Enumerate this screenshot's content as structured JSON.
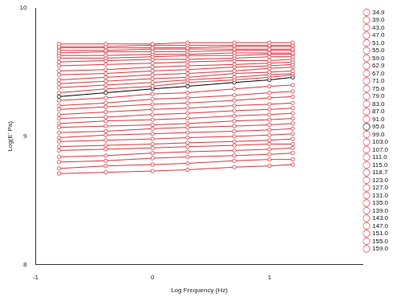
{
  "chart_data": {
    "type": "line",
    "x_label": "Log Frequency (Hz)",
    "y_label": "Log(E' Pa)",
    "x": [
      -0.8,
      -0.4,
      0.0,
      0.3,
      0.7,
      1.0,
      1.2
    ],
    "xlim": [
      -1,
      1.8
    ],
    "xticks": [
      -1,
      0,
      1
    ],
    "ylim": [
      8,
      10
    ],
    "yticks": [
      8,
      9,
      10
    ],
    "grid": false,
    "legend": "right",
    "marker": "circle",
    "line_style": "solid",
    "series": [
      {
        "name": "34.9",
        "color": "#d9363e",
        "values": [
          9.72,
          9.72,
          9.72,
          9.73,
          9.73,
          9.73,
          9.73
        ]
      },
      {
        "name": "39.0",
        "color": "#d9363e",
        "values": [
          9.7,
          9.7,
          9.71,
          9.71,
          9.71,
          9.71,
          9.71
        ]
      },
      {
        "name": "43.0",
        "color": "#d9363e",
        "values": [
          9.69,
          9.69,
          9.69,
          9.69,
          9.7,
          9.7,
          9.7
        ]
      },
      {
        "name": "47.0",
        "color": "#d9363e",
        "values": [
          9.67,
          9.67,
          9.68,
          9.68,
          9.68,
          9.68,
          9.68
        ]
      },
      {
        "name": "51.0",
        "color": "#d9363e",
        "values": [
          9.65,
          9.66,
          9.66,
          9.66,
          9.67,
          9.67,
          9.67
        ]
      },
      {
        "name": "55.0",
        "color": "#d9363e",
        "values": [
          9.63,
          9.63,
          9.64,
          9.64,
          9.65,
          9.65,
          9.65
        ]
      },
      {
        "name": "59.0",
        "color": "#d9363e",
        "values": [
          9.61,
          9.61,
          9.62,
          9.63,
          9.63,
          9.64,
          9.64
        ]
      },
      {
        "name": "62.9",
        "color": "#d9363e",
        "values": [
          9.58,
          9.59,
          9.6,
          9.6,
          9.61,
          9.62,
          9.62
        ]
      },
      {
        "name": "67.0",
        "color": "#d9363e",
        "values": [
          9.55,
          9.56,
          9.57,
          9.58,
          9.59,
          9.59,
          9.6
        ]
      },
      {
        "name": "71.0",
        "color": "#d9363e",
        "values": [
          9.51,
          9.52,
          9.54,
          9.55,
          9.56,
          9.57,
          9.58
        ]
      },
      {
        "name": "75.0",
        "color": "#d9363e",
        "values": [
          9.48,
          9.49,
          9.51,
          9.52,
          9.54,
          9.55,
          9.56
        ]
      },
      {
        "name": "79.0",
        "color": "#d9363e",
        "values": [
          9.44,
          9.46,
          9.48,
          9.49,
          9.51,
          9.53,
          9.54
        ]
      },
      {
        "name": "83.0",
        "color": "#d9363e",
        "values": [
          9.41,
          9.43,
          9.45,
          9.46,
          9.49,
          9.5,
          9.51
        ]
      },
      {
        "name": "87.0",
        "color": "#d9363e",
        "values": [
          9.38,
          9.4,
          9.42,
          9.44,
          9.46,
          9.48,
          9.49
        ]
      },
      {
        "name": "91.0",
        "color": "#d9363e",
        "values": [
          9.34,
          9.37,
          9.39,
          9.42,
          9.44,
          9.46,
          9.48
        ]
      },
      {
        "name": "95.0",
        "color": "#000000",
        "values": [
          9.31,
          9.34,
          9.37,
          9.39,
          9.42,
          9.44,
          9.46
        ]
      },
      {
        "name": "99.0",
        "color": "#d9363e",
        "values": [
          9.28,
          9.3,
          9.33,
          9.34,
          9.37,
          9.39,
          9.4
        ]
      },
      {
        "name": "103.0",
        "color": "#d9363e",
        "values": [
          9.24,
          9.26,
          9.29,
          9.3,
          9.32,
          9.34,
          9.35
        ]
      },
      {
        "name": "107.0",
        "color": "#d9363e",
        "values": [
          9.21,
          9.23,
          9.25,
          9.26,
          9.28,
          9.3,
          9.31
        ]
      },
      {
        "name": "111.0",
        "color": "#d9363e",
        "values": [
          9.17,
          9.19,
          9.21,
          9.22,
          9.24,
          9.25,
          9.26
        ]
      },
      {
        "name": "115.0",
        "color": "#d9363e",
        "values": [
          9.14,
          9.15,
          9.17,
          9.18,
          9.2,
          9.21,
          9.22
        ]
      },
      {
        "name": "118.7",
        "color": "#d9363e",
        "values": [
          9.1,
          9.12,
          9.13,
          9.14,
          9.16,
          9.17,
          9.18
        ]
      },
      {
        "name": "123.0",
        "color": "#d9363e",
        "values": [
          9.07,
          9.08,
          9.09,
          9.1,
          9.12,
          9.13,
          9.14
        ]
      },
      {
        "name": "127.0",
        "color": "#d9363e",
        "values": [
          9.03,
          9.04,
          9.06,
          9.07,
          9.08,
          9.09,
          9.1
        ]
      },
      {
        "name": "131.0",
        "color": "#d9363e",
        "values": [
          8.99,
          9.01,
          9.02,
          9.03,
          9.04,
          9.05,
          9.06
        ]
      },
      {
        "name": "135.0",
        "color": "#d9363e",
        "values": [
          8.96,
          8.97,
          8.98,
          8.99,
          9.0,
          9.01,
          9.02
        ]
      },
      {
        "name": "139.0",
        "color": "#d9363e",
        "values": [
          8.92,
          8.93,
          8.94,
          8.95,
          8.96,
          8.97,
          8.98
        ]
      },
      {
        "name": "143.0",
        "color": "#d9363e",
        "values": [
          8.89,
          8.9,
          8.91,
          8.92,
          8.93,
          8.94,
          8.94
        ]
      },
      {
        "name": "147.0",
        "color": "#d9363e",
        "values": [
          8.84,
          8.85,
          8.87,
          8.88,
          8.89,
          8.9,
          8.91
        ]
      },
      {
        "name": "151.0",
        "color": "#d9363e",
        "values": [
          8.8,
          8.81,
          8.83,
          8.84,
          8.85,
          8.86,
          8.87
        ]
      },
      {
        "name": "155.0",
        "color": "#d9363e",
        "values": [
          8.75,
          8.77,
          8.78,
          8.79,
          8.81,
          8.82,
          8.82
        ]
      },
      {
        "name": "159.0",
        "color": "#d9363e",
        "values": [
          8.71,
          8.72,
          8.73,
          8.74,
          8.76,
          8.77,
          8.78
        ]
      }
    ]
  }
}
